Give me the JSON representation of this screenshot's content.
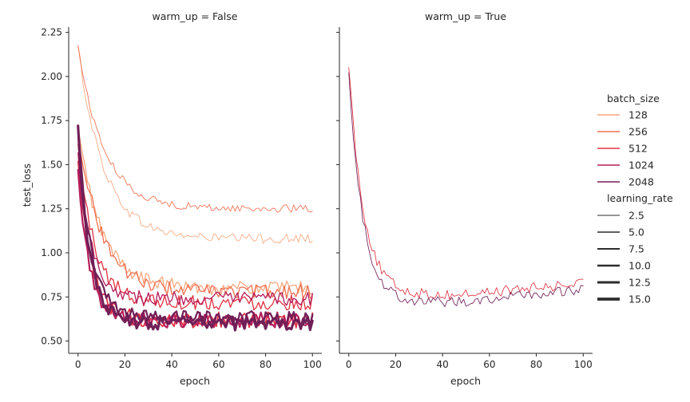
{
  "chart_data": {
    "type": "line",
    "ylabel": "test_loss",
    "xlabel": "epoch",
    "xlim": [
      -4,
      104
    ],
    "ylim": [
      0.43,
      2.28
    ],
    "xticks": [
      0,
      20,
      40,
      60,
      80,
      100
    ],
    "yticks": [
      0.5,
      0.75,
      1.0,
      1.25,
      1.5,
      1.75,
      2.0,
      2.25
    ],
    "ytick_labels": [
      "0.50",
      "0.75",
      "1.00",
      "1.25",
      "1.50",
      "1.75",
      "2.00",
      "2.25"
    ],
    "panels": [
      {
        "title": "warm_up = False",
        "series": [
          {
            "batch_size": 128,
            "learning_rate": 2.5,
            "color": "#f6a77f",
            "start": 2.17,
            "end": 1.08,
            "k": 0.09,
            "noise": 0.028
          },
          {
            "batch_size": 256,
            "learning_rate": 2.5,
            "color": "#f07050",
            "start": 2.17,
            "end": 1.25,
            "k": 0.09,
            "noise": 0.022
          },
          {
            "batch_size": 128,
            "learning_rate": 5.0,
            "color": "#f6a77f",
            "start": 1.7,
            "end": 0.8,
            "k": 0.1,
            "noise": 0.04
          },
          {
            "batch_size": 256,
            "learning_rate": 5.0,
            "color": "#f07050",
            "start": 1.7,
            "end": 0.78,
            "k": 0.1,
            "noise": 0.04
          },
          {
            "batch_size": 512,
            "learning_rate": 5.0,
            "color": "#e13342",
            "start": 1.6,
            "end": 0.72,
            "k": 0.14,
            "noise": 0.045
          },
          {
            "batch_size": 512,
            "learning_rate": 7.5,
            "color": "#e13342",
            "start": 1.5,
            "end": 0.62,
            "k": 0.18,
            "noise": 0.045
          },
          {
            "batch_size": 1024,
            "learning_rate": 5.0,
            "color": "#b71d5a",
            "start": 1.55,
            "end": 0.74,
            "k": 0.17,
            "noise": 0.04
          },
          {
            "batch_size": 1024,
            "learning_rate": 10.0,
            "color": "#b71d5a",
            "start": 1.45,
            "end": 0.62,
            "k": 0.2,
            "noise": 0.045
          },
          {
            "batch_size": 2048,
            "learning_rate": 10.0,
            "color": "#701f57",
            "start": 1.7,
            "end": 0.63,
            "k": 0.18,
            "noise": 0.04
          },
          {
            "batch_size": 2048,
            "learning_rate": 15.0,
            "color": "#701f57",
            "start": 1.7,
            "end": 0.6,
            "k": 0.2,
            "noise": 0.04
          }
        ]
      },
      {
        "title": "warm_up = True",
        "series": [
          {
            "batch_size": 512,
            "learning_rate": 2.5,
            "color": "#e13342",
            "start": 2.08,
            "end": 0.76,
            "k": 0.16,
            "noise": 0.03,
            "rise": 0.0012
          },
          {
            "batch_size": 2048,
            "learning_rate": 2.5,
            "color": "#701f57",
            "start": 2.05,
            "end": 0.72,
            "k": 0.17,
            "noise": 0.03,
            "rise": 0.0013
          }
        ]
      }
    ],
    "legend": {
      "placement": "right",
      "batch_size_title": "batch_size",
      "batch_size": [
        {
          "label": "128",
          "color": "#f6a77f"
        },
        {
          "label": "256",
          "color": "#f07050"
        },
        {
          "label": "512",
          "color": "#e13342"
        },
        {
          "label": "1024",
          "color": "#b71d5a"
        },
        {
          "label": "2048",
          "color": "#701f57"
        }
      ],
      "learning_rate_title": "learning_rate",
      "learning_rate": [
        {
          "label": "2.5",
          "value": 2.5
        },
        {
          "label": "5.0",
          "value": 5.0
        },
        {
          "label": "7.5",
          "value": 7.5
        },
        {
          "label": "10.0",
          "value": 10.0
        },
        {
          "label": "12.5",
          "value": 12.5
        },
        {
          "label": "15.0",
          "value": 15.0
        }
      ]
    }
  }
}
